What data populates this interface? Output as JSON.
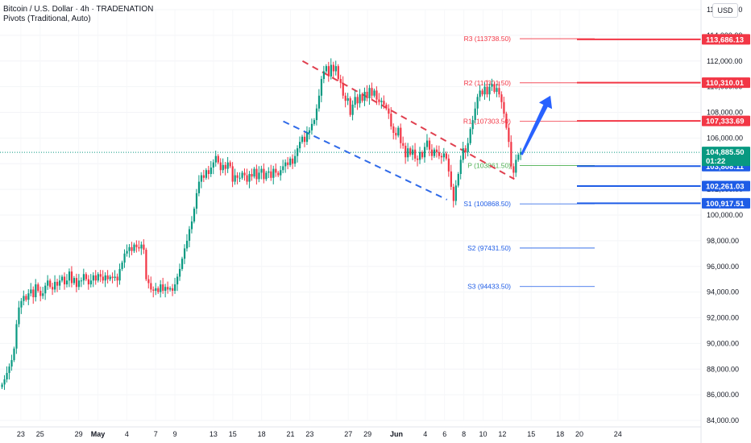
{
  "header": {
    "title": "Bitcoin / U.S. Dollar · 4h · TRADENATION",
    "indicator": "Pivots (Traditional, Auto)",
    "currency": "USD"
  },
  "colors": {
    "bull": "#089981",
    "bear": "#f23645",
    "resistance": "#f23645",
    "support": "#1e5ce6",
    "pivot": "#4caf50",
    "arrow": "#2962ff",
    "upper_trendline": "#e0404f",
    "lower_trendline": "#2f6ae8"
  },
  "chart_data": {
    "type": "candlestick",
    "symbol": "Bitcoin / U.S. Dollar",
    "timeframe": "4h",
    "ylim": [
      84000,
      116000
    ],
    "y_ticks": [
      "116,000.00",
      "114,000.00",
      "112,000.00",
      "110,000.00",
      "108,000.00",
      "106,000.00",
      "104,000.00",
      "102,000.00",
      "100,000.00",
      "98,000.00",
      "96,000.00",
      "94,000.00",
      "92,000.00",
      "90,000.00",
      "88,000.00",
      "86,000.00",
      "84,000.00"
    ],
    "x_ticks": [
      "23",
      "25",
      "29",
      "May",
      "4",
      "7",
      "9",
      "13",
      "15",
      "18",
      "21",
      "23",
      "27",
      "29",
      "Jun",
      "4",
      "6",
      "8",
      "10",
      "12",
      "15",
      "18",
      "20",
      "24"
    ],
    "bold_x_ticks": [
      "May",
      "Jun"
    ],
    "last_price": "104,885.50",
    "countdown": "01:22",
    "pivots": [
      {
        "label": "R3 (113738.50)",
        "value": 113738.5,
        "kind": "resistance"
      },
      {
        "label": "R2 (110301.50)",
        "value": 110301.5,
        "kind": "resistance"
      },
      {
        "label": "R1 (107303.50)",
        "value": 107303.5,
        "kind": "resistance"
      },
      {
        "label": "P (103861.50)",
        "value": 103861.5,
        "kind": "pivot"
      },
      {
        "label": "S1 (100868.50)",
        "value": 100868.5,
        "kind": "support"
      },
      {
        "label": "S2 (97431.50)",
        "value": 97431.5,
        "kind": "support"
      },
      {
        "label": "S3 (94433.50)",
        "value": 94433.5,
        "kind": "support"
      }
    ],
    "levels": [
      {
        "value": 113686.13,
        "label": "113,686.13",
        "kind": "resistance"
      },
      {
        "value": 110310.01,
        "label": "110,310.01",
        "kind": "resistance"
      },
      {
        "value": 107333.69,
        "label": "107,333.69",
        "kind": "resistance"
      },
      {
        "value": 103808.11,
        "label": "103,808.11",
        "kind": "support"
      },
      {
        "value": 102261.03,
        "label": "102,261.03",
        "kind": "support"
      },
      {
        "value": 100917.51,
        "label": "100,917.51",
        "kind": "support"
      }
    ],
    "trendlines": [
      {
        "name": "upper",
        "style": "dashed",
        "from": {
          "date": "May 22",
          "value": 112000
        },
        "to": {
          "date": "Jun 13",
          "value": 102800
        }
      },
      {
        "name": "lower",
        "style": "dashed",
        "from": {
          "date": "May 20",
          "value": 107300
        },
        "to": {
          "date": "Jun 6",
          "value": 101200
        }
      }
    ],
    "arrow": {
      "from": {
        "date": "Jun 14",
        "value": 104700
      },
      "to": {
        "date": "Jun 17",
        "value": 109300
      }
    },
    "closes": [
      86800,
      87200,
      87700,
      88200,
      88700,
      89600,
      91500,
      92800,
      93300,
      93700,
      93400,
      93900,
      94200,
      93600,
      94600,
      94100,
      93700,
      93900,
      94500,
      94900,
      94400,
      94200,
      94800,
      94500,
      94900,
      95200,
      94600,
      94900,
      95600,
      94700,
      95100,
      94400,
      94900,
      94900,
      95400,
      95000,
      94600,
      94900,
      95300,
      94900,
      95400,
      95200,
      94900,
      95300,
      95000,
      95200,
      95100,
      95200,
      94900,
      95800,
      96300,
      97000,
      97200,
      97500,
      97200,
      97700,
      97500,
      97400,
      97700,
      97300,
      95000,
      94700,
      94200,
      94100,
      94300,
      94000,
      94600,
      94100,
      94400,
      94200,
      94300,
      94100,
      94600,
      95200,
      95800,
      96600,
      97400,
      98000,
      98900,
      99500,
      100500,
      101700,
      102600,
      103100,
      102900,
      103500,
      103200,
      103700,
      104100,
      104600,
      104100,
      103500,
      103900,
      103600,
      104100,
      103800,
      102600,
      103100,
      102900,
      102900,
      103300,
      103100,
      102600,
      103200,
      103000,
      103600,
      102800,
      103300,
      103600,
      102800,
      103300,
      103400,
      102900,
      103600,
      103300,
      103100,
      103500,
      103800,
      104100,
      103900,
      104400,
      104000,
      104600,
      105200,
      105700,
      106100,
      105700,
      106400,
      106600,
      107100,
      107400,
      108300,
      109300,
      110600,
      111200,
      111600,
      110800,
      111700,
      111200,
      111600,
      110600,
      110300,
      109300,
      108900,
      109100,
      107800,
      108600,
      109200,
      108700,
      109400,
      108900,
      109600,
      109100,
      109900,
      109300,
      109700,
      109000,
      108800,
      108900,
      108600,
      108300,
      107900,
      106900,
      106400,
      106200,
      106800,
      105600,
      105400,
      104500,
      105200,
      104700,
      105100,
      104400,
      104300,
      104900,
      104500,
      105300,
      105800,
      105100,
      104600,
      105100,
      104900,
      104600,
      104500,
      104800,
      104400,
      103400,
      102200,
      101100,
      102300,
      103200,
      104300,
      105200,
      104900,
      105600,
      106700,
      107400,
      108300,
      109200,
      109700,
      109400,
      110000,
      109400,
      110000,
      110200,
      109600,
      109900,
      109400,
      108800,
      107900,
      106800,
      105700,
      103800,
      103300,
      104300,
      104700,
      104900
    ]
  }
}
